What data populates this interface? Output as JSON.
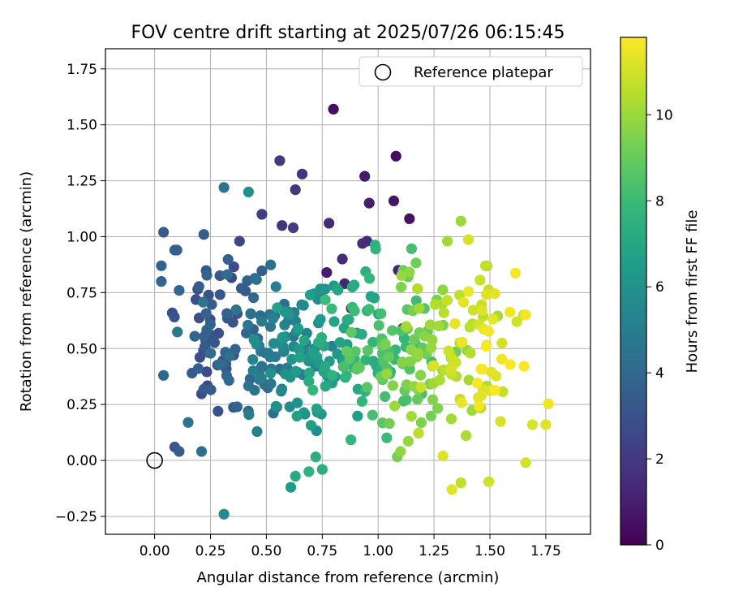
{
  "chart_data": {
    "type": "scatter",
    "title": "FOV centre drift starting at 2025/07/26 06:15:45",
    "xlabel": "Angular distance from reference (arcmin)",
    "ylabel": "Rotation from reference (arcmin)",
    "xlim": [
      -0.22,
      1.95
    ],
    "ylim": [
      -0.33,
      1.84
    ],
    "xticks": [
      0.0,
      0.25,
      0.5,
      0.75,
      1.0,
      1.25,
      1.5,
      1.75
    ],
    "xtick_labels": [
      "0.00",
      "0.25",
      "0.50",
      "0.75",
      "1.00",
      "1.25",
      "1.50",
      "1.75"
    ],
    "yticks": [
      -0.25,
      0.0,
      0.25,
      0.5,
      0.75,
      1.0,
      1.25,
      1.5,
      1.75
    ],
    "ytick_labels": [
      "−0.25",
      "0.00",
      "0.25",
      "0.50",
      "0.75",
      "1.00",
      "1.25",
      "1.50",
      "1.75"
    ],
    "grid": true,
    "legend": {
      "placement": "top-right",
      "entries": [
        "Reference platepar"
      ]
    },
    "reference_point": {
      "x": 0.0,
      "y": 0.0
    },
    "colorbar": {
      "label": "Hours from first FF file",
      "colormap": "viridis",
      "range": [
        0,
        11.8
      ],
      "ticks": [
        0,
        2,
        4,
        6,
        8,
        10
      ],
      "tick_labels": [
        "0",
        "2",
        "4",
        "6",
        "8",
        "10"
      ]
    },
    "colormap_stops": [
      "#440154",
      "#482878",
      "#3e4989",
      "#31688e",
      "#26828e",
      "#1f9e89",
      "#35b779",
      "#6ece58",
      "#b5de2b",
      "#fde725"
    ],
    "series": [
      {
        "notable_points": [
          {
            "x": 0.8,
            "y": 1.57,
            "t": 0.5
          },
          {
            "x": 1.08,
            "y": 1.36,
            "t": 0.4
          },
          {
            "x": 0.94,
            "y": 1.27,
            "t": 0.8
          },
          {
            "x": 1.07,
            "y": 1.16,
            "t": 0.7
          },
          {
            "x": 1.14,
            "y": 1.08,
            "t": 0.6
          },
          {
            "x": 0.96,
            "y": 1.15,
            "t": 1.0
          },
          {
            "x": 0.78,
            "y": 1.06,
            "t": 1.3
          },
          {
            "x": 0.66,
            "y": 1.28,
            "t": 1.8
          },
          {
            "x": 0.56,
            "y": 1.34,
            "t": 2.0
          },
          {
            "x": 0.63,
            "y": 1.21,
            "t": 1.9
          },
          {
            "x": 0.31,
            "y": 1.22,
            "t": 4.6
          },
          {
            "x": 0.42,
            "y": 1.2,
            "t": 5.8
          },
          {
            "x": 0.04,
            "y": 1.02,
            "t": 3.4
          },
          {
            "x": 0.09,
            "y": 0.94,
            "t": 3.5
          },
          {
            "x": 0.1,
            "y": 0.94,
            "t": 3.6
          },
          {
            "x": 0.03,
            "y": 0.87,
            "t": 3.7
          },
          {
            "x": 0.03,
            "y": 0.8,
            "t": 3.8
          },
          {
            "x": 0.11,
            "y": 0.76,
            "t": 3.9
          },
          {
            "x": 0.04,
            "y": 0.38,
            "t": 4.0
          },
          {
            "x": 0.09,
            "y": 0.06,
            "t": 3.3
          },
          {
            "x": 0.11,
            "y": 0.04,
            "t": 3.4
          },
          {
            "x": 0.21,
            "y": 0.04,
            "t": 4.3
          },
          {
            "x": 0.15,
            "y": 0.17,
            "t": 4.6
          },
          {
            "x": 0.31,
            "y": -0.24,
            "t": 5.6
          },
          {
            "x": 1.33,
            "y": -0.13,
            "t": 11.3
          },
          {
            "x": 1.37,
            "y": -0.1,
            "t": 10.6
          },
          {
            "x": 1.66,
            "y": -0.01,
            "t": 11.0
          },
          {
            "x": 1.69,
            "y": 0.16,
            "t": 11.1
          },
          {
            "x": 1.75,
            "y": 0.16,
            "t": 11.2
          },
          {
            "x": 1.37,
            "y": 1.07,
            "t": 10.0
          },
          {
            "x": 1.31,
            "y": 0.98,
            "t": 10.1
          },
          {
            "x": 1.48,
            "y": 0.87,
            "t": 10.8
          },
          {
            "x": 1.65,
            "y": 0.65,
            "t": 10.9
          },
          {
            "x": 1.62,
            "y": 0.62,
            "t": 11.0
          },
          {
            "x": 1.1,
            "y": 0.04,
            "t": 9.8
          },
          {
            "x": 1.29,
            "y": 0.02,
            "t": 11.2
          },
          {
            "x": 0.69,
            "y": -0.05,
            "t": 7.6
          },
          {
            "x": 0.75,
            "y": -0.04,
            "t": 7.4
          },
          {
            "x": 0.63,
            "y": -0.07,
            "t": 7.2
          },
          {
            "x": 0.77,
            "y": 0.84,
            "t": 0.9
          },
          {
            "x": 0.84,
            "y": 0.9,
            "t": 1.4
          },
          {
            "x": 0.85,
            "y": 0.79,
            "t": 1.2
          },
          {
            "x": 1.09,
            "y": 0.85,
            "t": 1.1
          },
          {
            "x": 1.11,
            "y": 0.59,
            "t": 1.5
          },
          {
            "x": 0.88,
            "y": 0.68,
            "t": 1.1
          },
          {
            "x": 0.95,
            "y": 0.98,
            "t": 1.3
          },
          {
            "x": 0.93,
            "y": 0.97,
            "t": 1.5
          },
          {
            "x": 0.57,
            "y": 1.05,
            "t": 1.9
          },
          {
            "x": 0.62,
            "y": 1.04,
            "t": 2.1
          },
          {
            "x": 0.48,
            "y": 1.1,
            "t": 2.2
          },
          {
            "x": 0.38,
            "y": 0.98,
            "t": 2.5
          },
          {
            "x": 0.22,
            "y": 1.01,
            "t": 3.5
          }
        ]
      }
    ]
  }
}
